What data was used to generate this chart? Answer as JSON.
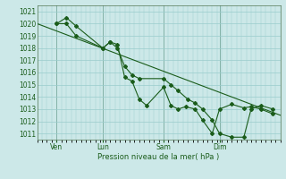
{
  "background_color": "#cce8e8",
  "grid_color": "#99cccc",
  "line_color": "#1a5c1a",
  "marker_color": "#1a5c1a",
  "xlabel": "Pression niveau de la mer( hPa )",
  "ylim": [
    1010.5,
    1021.5
  ],
  "ytick_vals": [
    1011,
    1012,
    1013,
    1014,
    1015,
    1016,
    1017,
    1018,
    1019,
    1020,
    1021
  ],
  "xtick_labels": [
    "Ven",
    "Lun",
    "Sam",
    "Dim"
  ],
  "xtick_positions": [
    0.08,
    0.27,
    0.52,
    0.75
  ],
  "total_width": 1.0,
  "series_smooth": [
    [
      0.0,
      1020.0
    ],
    [
      1.0,
      1012.5
    ]
  ],
  "series_data1_x": [
    0.08,
    0.12,
    0.16,
    0.27,
    0.3,
    0.33,
    0.36,
    0.39,
    0.42,
    0.45,
    0.52,
    0.55,
    0.58,
    0.61,
    0.65,
    0.68,
    0.72,
    0.75,
    0.8,
    0.85,
    0.88,
    0.92,
    0.97
  ],
  "series_data1_y": [
    1020.0,
    1020.5,
    1019.8,
    1018.0,
    1018.5,
    1018.3,
    1015.6,
    1015.3,
    1013.8,
    1013.3,
    1014.8,
    1013.3,
    1013.0,
    1013.2,
    1013.0,
    1012.1,
    1011.0,
    1013.0,
    1013.4,
    1013.1,
    1013.2,
    1013.0,
    1012.6
  ],
  "series_data2_x": [
    0.08,
    0.12,
    0.16,
    0.27,
    0.3,
    0.33,
    0.36,
    0.39,
    0.42,
    0.52,
    0.55,
    0.58,
    0.62,
    0.65,
    0.68,
    0.72,
    0.75,
    0.8,
    0.85,
    0.88,
    0.92,
    0.97
  ],
  "series_data2_y": [
    1020.0,
    1020.0,
    1019.0,
    1018.0,
    1018.5,
    1018.0,
    1016.5,
    1015.8,
    1015.5,
    1015.5,
    1015.0,
    1014.5,
    1013.8,
    1013.5,
    1013.0,
    1012.1,
    1011.0,
    1010.7,
    1010.7,
    1013.0,
    1013.3,
    1013.0
  ]
}
